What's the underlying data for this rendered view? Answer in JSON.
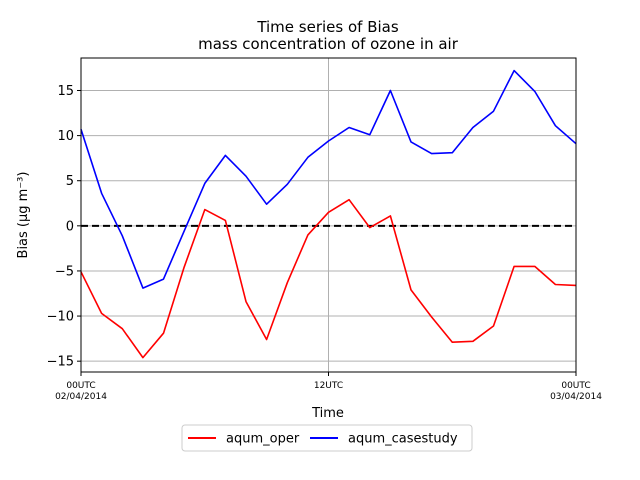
{
  "chart_data": {
    "type": "line",
    "title": "Time series of Bias",
    "subtitle": "mass concentration of ozone in air",
    "xlabel": "Time",
    "ylabel": "Bias (μg m⁻³)",
    "xlim": [
      0,
      24
    ],
    "ylim": [
      -16.2,
      18.6
    ],
    "yticks": [
      -15,
      -10,
      -5,
      0,
      5,
      10,
      15
    ],
    "xticks": [
      {
        "x": 0,
        "line1": "00UTC",
        "line2": "02/04/2014"
      },
      {
        "x": 12,
        "line1": "12UTC",
        "line2": ""
      },
      {
        "x": 24,
        "line1": "00UTC",
        "line2": "03/04/2014"
      }
    ],
    "grid": true,
    "reference_line": {
      "y": 0,
      "style": "dashed",
      "color": "#000000"
    },
    "x": [
      0,
      1,
      2,
      3,
      4,
      5,
      6,
      7,
      8,
      9,
      10,
      11,
      12,
      13,
      14,
      15,
      16,
      17,
      18,
      19,
      20,
      21,
      22,
      23,
      24
    ],
    "series": [
      {
        "name": "aqum_oper",
        "color": "#ff0000",
        "values": [
          -5.1,
          -9.7,
          -11.4,
          -14.6,
          -11.9,
          -4.6,
          1.8,
          0.6,
          -8.4,
          -12.6,
          -6.3,
          -1.0,
          1.5,
          2.9,
          -0.2,
          1.1,
          -7.1,
          -10.1,
          -12.9,
          -12.8,
          -11.1,
          -4.5,
          -4.5,
          -6.5,
          -6.6
        ]
      },
      {
        "name": "aqum_casestudy",
        "color": "#0000ff",
        "values": [
          10.7,
          3.6,
          -1.1,
          -6.9,
          -5.9,
          -0.6,
          4.7,
          7.8,
          5.5,
          2.4,
          4.6,
          7.6,
          9.4,
          10.9,
          10.1,
          15.0,
          9.3,
          8.0,
          8.1,
          10.9,
          12.7,
          17.2,
          14.9,
          11.1,
          9.1
        ]
      }
    ],
    "legend": {
      "placement": "bottom-center",
      "columns": 2
    }
  }
}
